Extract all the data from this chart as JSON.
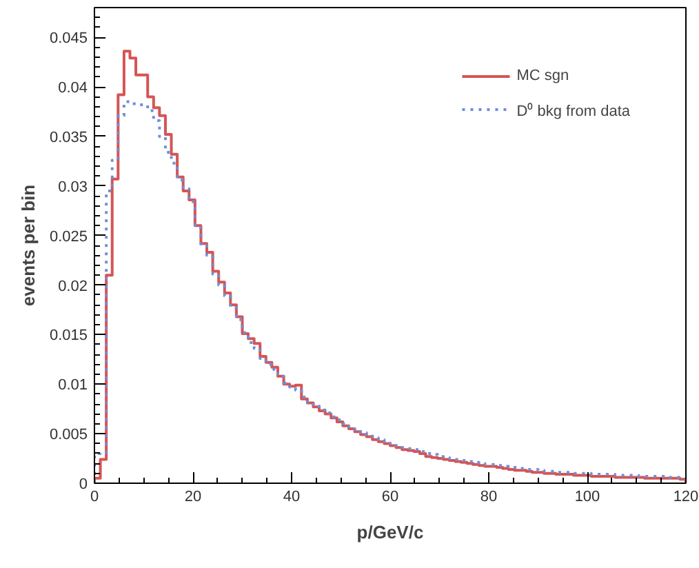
{
  "chart_data": {
    "type": "histogram",
    "xlabel": "p/GeV/c",
    "ylabel": "events per bin",
    "bins": [
      0,
      1.2,
      2.4,
      3.6,
      4.8,
      6,
      7.2,
      8.4,
      9.6,
      10.8,
      12,
      13.2,
      14.4,
      15.6,
      16.8,
      18,
      19.2,
      20.4,
      21.6,
      22.8,
      24,
      25.2,
      26.4,
      27.6,
      28.8,
      30,
      31.2,
      32.4,
      33.6,
      34.8,
      36,
      37.2,
      38.4,
      39.6,
      40.8,
      42,
      43.2,
      44.4,
      45.6,
      46.8,
      48,
      49.2,
      50.4,
      51.6,
      52.8,
      54,
      55.2,
      56.4,
      57.6,
      58.8,
      60,
      61.2,
      62.4,
      63.6,
      64.8,
      66,
      67.2,
      68.4,
      69.6,
      70.8,
      72,
      73.2,
      74.4,
      75.6,
      76.8,
      78,
      79.2,
      80.4,
      81.6,
      82.8,
      84,
      85.2,
      86.4,
      87.6,
      88.8,
      90,
      91.2,
      92.4,
      93.6,
      94.8,
      96,
      97.2,
      98.4,
      99.6,
      100.8,
      102,
      103.2,
      104.4,
      105.6,
      106.8,
      108,
      109.2,
      110.4,
      111.6,
      112.8,
      114,
      115.2,
      116.4,
      117.6,
      118.8,
      120
    ],
    "series": [
      {
        "name": "MC sgn",
        "color": "#d45555",
        "line_style": "solid",
        "values": [
          0.0005,
          0.0024,
          0.021,
          0.0307,
          0.0392,
          0.0436,
          0.0429,
          0.0412,
          0.0412,
          0.039,
          0.0379,
          0.0371,
          0.0352,
          0.0332,
          0.0309,
          0.0295,
          0.0286,
          0.026,
          0.0242,
          0.0233,
          0.0214,
          0.0203,
          0.0192,
          0.018,
          0.0168,
          0.0151,
          0.0146,
          0.0141,
          0.0128,
          0.0122,
          0.0117,
          0.0108,
          0.01,
          0.0098,
          0.0099,
          0.0085,
          0.0081,
          0.0077,
          0.0073,
          0.007,
          0.0066,
          0.0062,
          0.0058,
          0.0055,
          0.0052,
          0.0049,
          0.0047,
          0.0044,
          0.0042,
          0.004,
          0.0038,
          0.0036,
          0.0034,
          0.0033,
          0.0032,
          0.003,
          0.0027,
          0.0026,
          0.0025,
          0.0024,
          0.0023,
          0.0022,
          0.0021,
          0.002,
          0.0019,
          0.0018,
          0.0017,
          0.0017,
          0.0016,
          0.0015,
          0.0014,
          0.0013,
          0.0013,
          0.0012,
          0.0011,
          0.0011,
          0.001,
          0.001,
          0.0009,
          0.0009,
          0.0009,
          0.0008,
          0.0008,
          0.0008,
          0.0007,
          0.0007,
          0.0007,
          0.0007,
          0.0006,
          0.0006,
          0.0006,
          0.0006,
          0.0006,
          0.0005,
          0.0005,
          0.0005,
          0.0005,
          0.0005,
          0.0005,
          0.0004
        ]
      },
      {
        "name": "D⁰ bkg from data",
        "color": "#6f8fd8",
        "line_style": "dotted",
        "values": [
          0.003,
          0.0031,
          0.0295,
          0.0326,
          0.0371,
          0.0385,
          0.0383,
          0.0382,
          0.0382,
          0.0376,
          0.0366,
          0.035,
          0.0334,
          0.0323,
          0.0306,
          0.0297,
          0.0284,
          0.0258,
          0.024,
          0.023,
          0.0211,
          0.02,
          0.0189,
          0.0177,
          0.0165,
          0.0152,
          0.0142,
          0.0136,
          0.0126,
          0.012,
          0.0115,
          0.0108,
          0.0101,
          0.0097,
          0.0094,
          0.0087,
          0.0082,
          0.0078,
          0.0074,
          0.0071,
          0.0067,
          0.0064,
          0.006,
          0.0057,
          0.0054,
          0.0051,
          0.0049,
          0.0046,
          0.0044,
          0.0042,
          0.004,
          0.0038,
          0.0036,
          0.0035,
          0.0034,
          0.0032,
          0.003,
          0.0029,
          0.0027,
          0.0026,
          0.0025,
          0.0024,
          0.0023,
          0.0022,
          0.0021,
          0.002,
          0.0019,
          0.0019,
          0.0018,
          0.0017,
          0.0016,
          0.0016,
          0.0015,
          0.0014,
          0.0014,
          0.0013,
          0.0012,
          0.0012,
          0.0011,
          0.0011,
          0.0011,
          0.001,
          0.001,
          0.001,
          0.0009,
          0.0009,
          0.0009,
          0.0009,
          0.0008,
          0.0008,
          0.0008,
          0.0008,
          0.0007,
          0.0007,
          0.0007,
          0.0007,
          0.0007,
          0.0006,
          0.0006,
          0.0006
        ]
      }
    ],
    "xlim": [
      0,
      120
    ],
    "xticks": [
      0,
      20,
      40,
      60,
      80,
      100,
      120
    ],
    "ylim": [
      0,
      0.048
    ],
    "yticks": [
      0,
      0.005,
      0.01,
      0.015,
      0.02,
      0.025,
      0.03,
      0.035,
      0.04,
      0.045
    ],
    "grid": false,
    "legend": "top right"
  }
}
